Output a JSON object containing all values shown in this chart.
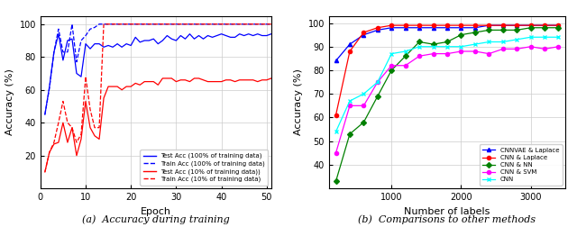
{
  "left_title": "(a)  Accuracy during training",
  "right_title": "(b)  Comparisons to other methods",
  "left_xlabel": "Epoch",
  "left_ylabel": "Accuracy (%)",
  "right_xlabel": "Number of labels",
  "right_ylabel": "Accuracy (%)",
  "left_legend": [
    "Test Acc (100% of training data)",
    "Train Acc (100% of training data)",
    "Test Acc (10% of training data))",
    "Train Acc (10% of training data)"
  ],
  "right_legend": [
    "CNNVAE & Laplace",
    "CNN & Laplace",
    "CNN & NN",
    "CNN & SVM",
    "CNN"
  ],
  "right_legend_colors": [
    "blue",
    "red",
    "green",
    "magenta",
    "cyan"
  ],
  "right_legend_markers": [
    "^",
    "o",
    "D",
    "o",
    "x"
  ],
  "blue_solid_test100": [
    45,
    62,
    83,
    94,
    78,
    90,
    91,
    70,
    68,
    88,
    85,
    88,
    88,
    86,
    87,
    86,
    88,
    86,
    88,
    87,
    92,
    89,
    90,
    90,
    91,
    88,
    90,
    93,
    91,
    90,
    93,
    91,
    94,
    91,
    93,
    91,
    93,
    92,
    93,
    94,
    93,
    92,
    92,
    94,
    93,
    94,
    93,
    94,
    93,
    93,
    94
  ],
  "blue_dashed_train100": [
    45,
    61,
    83,
    97,
    83,
    83,
    100,
    77,
    90,
    93,
    97,
    98,
    100,
    100,
    100,
    100,
    100,
    100,
    100,
    100,
    100,
    100,
    100,
    100,
    100,
    100,
    100,
    100,
    100,
    100,
    100,
    100,
    100,
    100,
    100,
    100,
    100,
    100,
    100,
    100,
    100,
    100,
    100,
    100,
    100,
    100,
    100,
    100,
    100,
    100,
    100
  ],
  "red_solid_test10": [
    10,
    22,
    27,
    28,
    40,
    28,
    37,
    20,
    30,
    53,
    37,
    32,
    30,
    55,
    62,
    62,
    62,
    60,
    62,
    62,
    64,
    63,
    65,
    65,
    65,
    63,
    67,
    67,
    67,
    65,
    66,
    66,
    65,
    67,
    67,
    66,
    65,
    65,
    65,
    65,
    66,
    66,
    65,
    66,
    66,
    66,
    66,
    65,
    66,
    66,
    67
  ],
  "red_dashed_train10": [
    10,
    22,
    28,
    40,
    53,
    40,
    37,
    28,
    33,
    68,
    48,
    37,
    37,
    100,
    100,
    100,
    100,
    100,
    100,
    100,
    100,
    100,
    100,
    100,
    100,
    100,
    100,
    100,
    100,
    100,
    100,
    100,
    100,
    100,
    100,
    100,
    100,
    100,
    100,
    100,
    100,
    100,
    100,
    100,
    100,
    100,
    100,
    100,
    100,
    100,
    100
  ],
  "right_x": [
    200,
    400,
    600,
    800,
    1000,
    1200,
    1400,
    1600,
    1800,
    2000,
    2200,
    2400,
    2600,
    2800,
    3000,
    3200,
    3400
  ],
  "cnnvae_laplace": [
    84,
    91,
    95,
    97,
    98,
    98,
    98,
    98,
    98,
    98,
    98,
    99,
    99,
    99,
    99,
    99,
    99
  ],
  "cnn_laplace": [
    61,
    88,
    96,
    98,
    99,
    99,
    99,
    99,
    99,
    99,
    99,
    99,
    99,
    99,
    99,
    99,
    99
  ],
  "cnn_nn": [
    33,
    53,
    58,
    69,
    80,
    86,
    92,
    91,
    92,
    95,
    96,
    97,
    97,
    97,
    98,
    98,
    98
  ],
  "cnn_svm": [
    45,
    65,
    65,
    75,
    82,
    82,
    86,
    87,
    87,
    88,
    88,
    87,
    89,
    89,
    90,
    89,
    90
  ],
  "cnn": [
    54,
    67,
    70,
    75,
    87,
    88,
    90,
    90,
    90,
    90,
    91,
    92,
    92,
    93,
    94,
    94,
    94
  ]
}
